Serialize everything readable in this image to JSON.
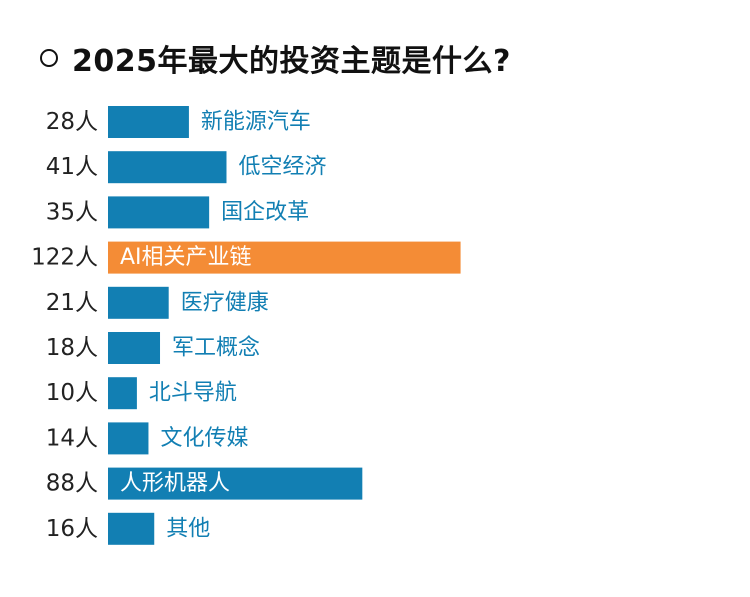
{
  "title": "2025年最大的投资主题是什么?",
  "icon": "radio-circle-icon",
  "colors": {
    "bar_default": "#127fb3",
    "bar_highlight": "#f48c36",
    "label_outside": "#127fb3",
    "label_inside": "#ffffff",
    "count_text": "#222222"
  },
  "chart_data": {
    "type": "bar",
    "orientation": "horizontal",
    "categories": [
      "新能源汽车",
      "低空经济",
      "国企改革",
      "AI相关产业链",
      "医疗健康",
      "军工概念",
      "北斗导航",
      "文化传媒",
      "人形机器人",
      "其他"
    ],
    "values": [
      28,
      41,
      35,
      122,
      21,
      18,
      10,
      14,
      88,
      16
    ],
    "value_labels": [
      "28人",
      "41人",
      "35人",
      "122人",
      "21人",
      "18人",
      "10人",
      "14人",
      "88人",
      "16人"
    ],
    "highlight": "AI相关产业链",
    "title": "2025年最大的投资主题是什么?"
  }
}
